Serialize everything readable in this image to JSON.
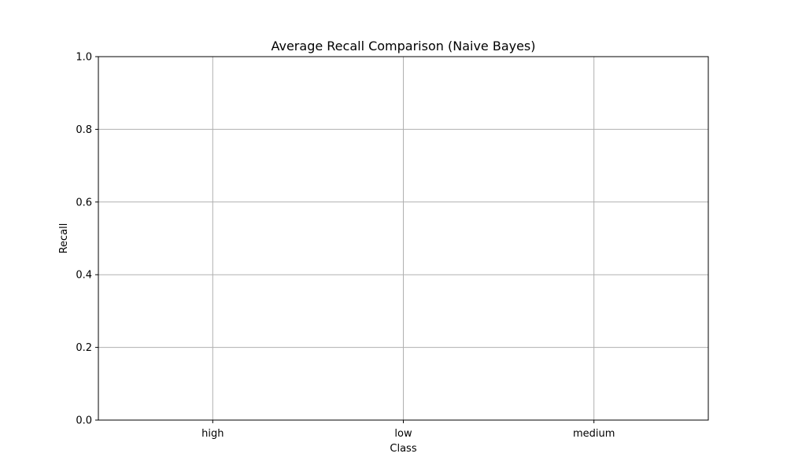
{
  "chart_data": {
    "type": "bar",
    "title": "Average Recall Comparison (Naive Bayes)",
    "xlabel": "Class",
    "ylabel": "Recall",
    "categories": [
      "high",
      "low",
      "medium"
    ],
    "values": [
      0,
      0,
      0
    ],
    "ylim": [
      0,
      1
    ],
    "yticks": [
      "0.0",
      "0.2",
      "0.4",
      "0.6",
      "0.8",
      "1.0"
    ],
    "grid": true,
    "colors": {
      "grid": "#b0b0b0",
      "axis": "#000000",
      "bar": "#1f77b4"
    }
  }
}
